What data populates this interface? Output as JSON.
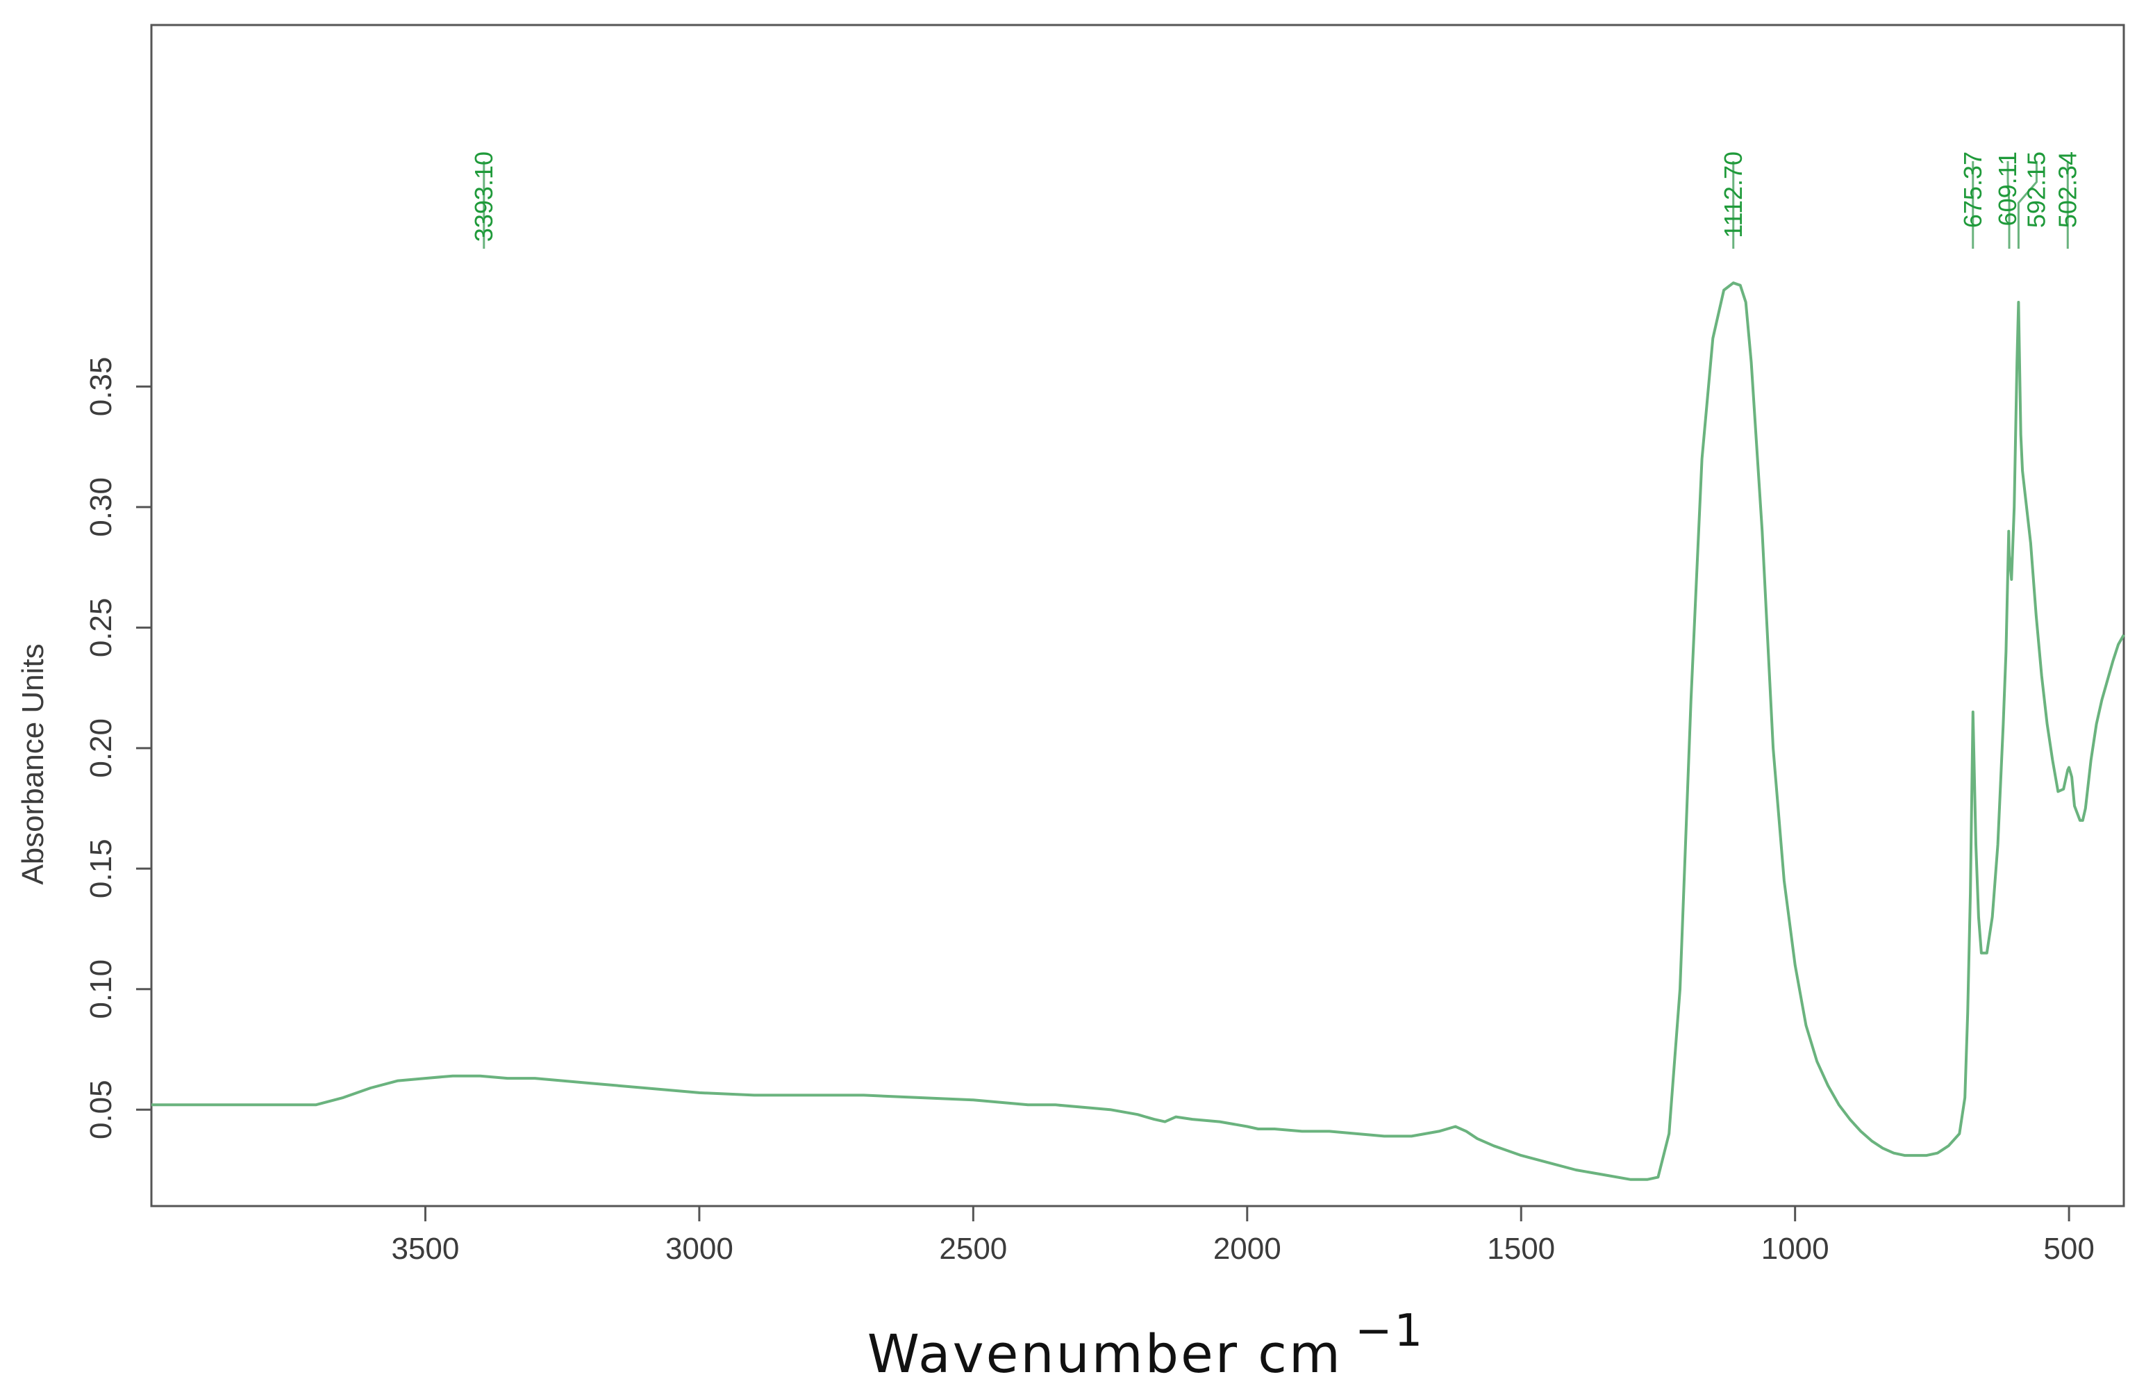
{
  "chart_data": {
    "type": "line",
    "xlabel": "Wavenumber cm",
    "xlabel_superscript": "−1",
    "ylabel": "Absorbance Units",
    "xlim": [
      4000,
      400
    ],
    "ylim": [
      0.01,
      0.5
    ],
    "x_ticks": [
      3500,
      3000,
      2500,
      2000,
      1500,
      1000,
      500
    ],
    "x_tick_labels": [
      "3500",
      "3000",
      "2500",
      "2000",
      "1500",
      "1000",
      "500"
    ],
    "y_ticks": [
      0.05,
      0.1,
      0.15,
      0.2,
      0.25,
      0.3,
      0.35
    ],
    "y_tick_labels": [
      "0.05",
      "0.10",
      "0.15",
      "0.20",
      "0.25",
      "0.30",
      "0.35"
    ],
    "grid": false,
    "colors": {
      "line": "#6ab37e",
      "peak_label": "#1f9a3a",
      "axis": "#555555"
    },
    "series": [
      {
        "x": [
          4000,
          3900,
          3800,
          3700,
          3650,
          3600,
          3550,
          3500,
          3450,
          3400,
          3350,
          3300,
          3250,
          3200,
          3100,
          3000,
          2900,
          2800,
          2700,
          2600,
          2500,
          2400,
          2350,
          2300,
          2250,
          2200,
          2170,
          2150,
          2130,
          2100,
          2050,
          2000,
          1980,
          1950,
          1900,
          1850,
          1800,
          1750,
          1700,
          1650,
          1620,
          1600,
          1580,
          1550,
          1500,
          1450,
          1400,
          1350,
          1300,
          1270,
          1250,
          1230,
          1210,
          1190,
          1170,
          1150,
          1130,
          1112.7,
          1100,
          1090,
          1080,
          1060,
          1040,
          1020,
          1000,
          980,
          960,
          940,
          920,
          900,
          880,
          860,
          840,
          820,
          800,
          780,
          760,
          740,
          720,
          700,
          690,
          685,
          680,
          675.37,
          670,
          665,
          660,
          650,
          640,
          630,
          620,
          615,
          610,
          609.11,
          605,
          600,
          595,
          592.15,
          588,
          585,
          580,
          570,
          560,
          550,
          540,
          530,
          520,
          510,
          502.34,
          500,
          495,
          490,
          480,
          475,
          470,
          460,
          450,
          440,
          430,
          420,
          410,
          400
        ],
        "y": [
          0.052,
          0.052,
          0.052,
          0.052,
          0.055,
          0.059,
          0.062,
          0.063,
          0.064,
          0.064,
          0.063,
          0.063,
          0.062,
          0.061,
          0.059,
          0.057,
          0.056,
          0.056,
          0.056,
          0.055,
          0.054,
          0.052,
          0.052,
          0.051,
          0.05,
          0.048,
          0.046,
          0.045,
          0.047,
          0.046,
          0.045,
          0.043,
          0.042,
          0.042,
          0.041,
          0.041,
          0.04,
          0.039,
          0.039,
          0.041,
          0.043,
          0.041,
          0.038,
          0.035,
          0.031,
          0.028,
          0.025,
          0.023,
          0.021,
          0.021,
          0.022,
          0.04,
          0.1,
          0.22,
          0.32,
          0.37,
          0.39,
          0.393,
          0.392,
          0.385,
          0.36,
          0.29,
          0.2,
          0.145,
          0.11,
          0.085,
          0.07,
          0.06,
          0.052,
          0.046,
          0.041,
          0.037,
          0.034,
          0.032,
          0.031,
          0.031,
          0.031,
          0.032,
          0.035,
          0.04,
          0.055,
          0.09,
          0.14,
          0.215,
          0.16,
          0.13,
          0.115,
          0.115,
          0.13,
          0.16,
          0.21,
          0.24,
          0.29,
          0.28,
          0.27,
          0.3,
          0.36,
          0.385,
          0.33,
          0.315,
          0.305,
          0.285,
          0.255,
          0.23,
          0.21,
          0.195,
          0.182,
          0.183,
          0.191,
          0.192,
          0.188,
          0.176,
          0.17,
          0.17,
          0.175,
          0.195,
          0.21,
          0.22,
          0.228,
          0.236,
          0.243,
          0.247
        ]
      }
    ],
    "peaks": [
      {
        "wavenumber": 3393.1,
        "label": "3393.10"
      },
      {
        "wavenumber": 1112.7,
        "label": "1112.70"
      },
      {
        "wavenumber": 675.37,
        "label": "675.37"
      },
      {
        "wavenumber": 609.11,
        "label": "609.11"
      },
      {
        "wavenumber": 592.15,
        "label": "592.15"
      },
      {
        "wavenumber": 502.34,
        "label": "502.34"
      }
    ]
  }
}
